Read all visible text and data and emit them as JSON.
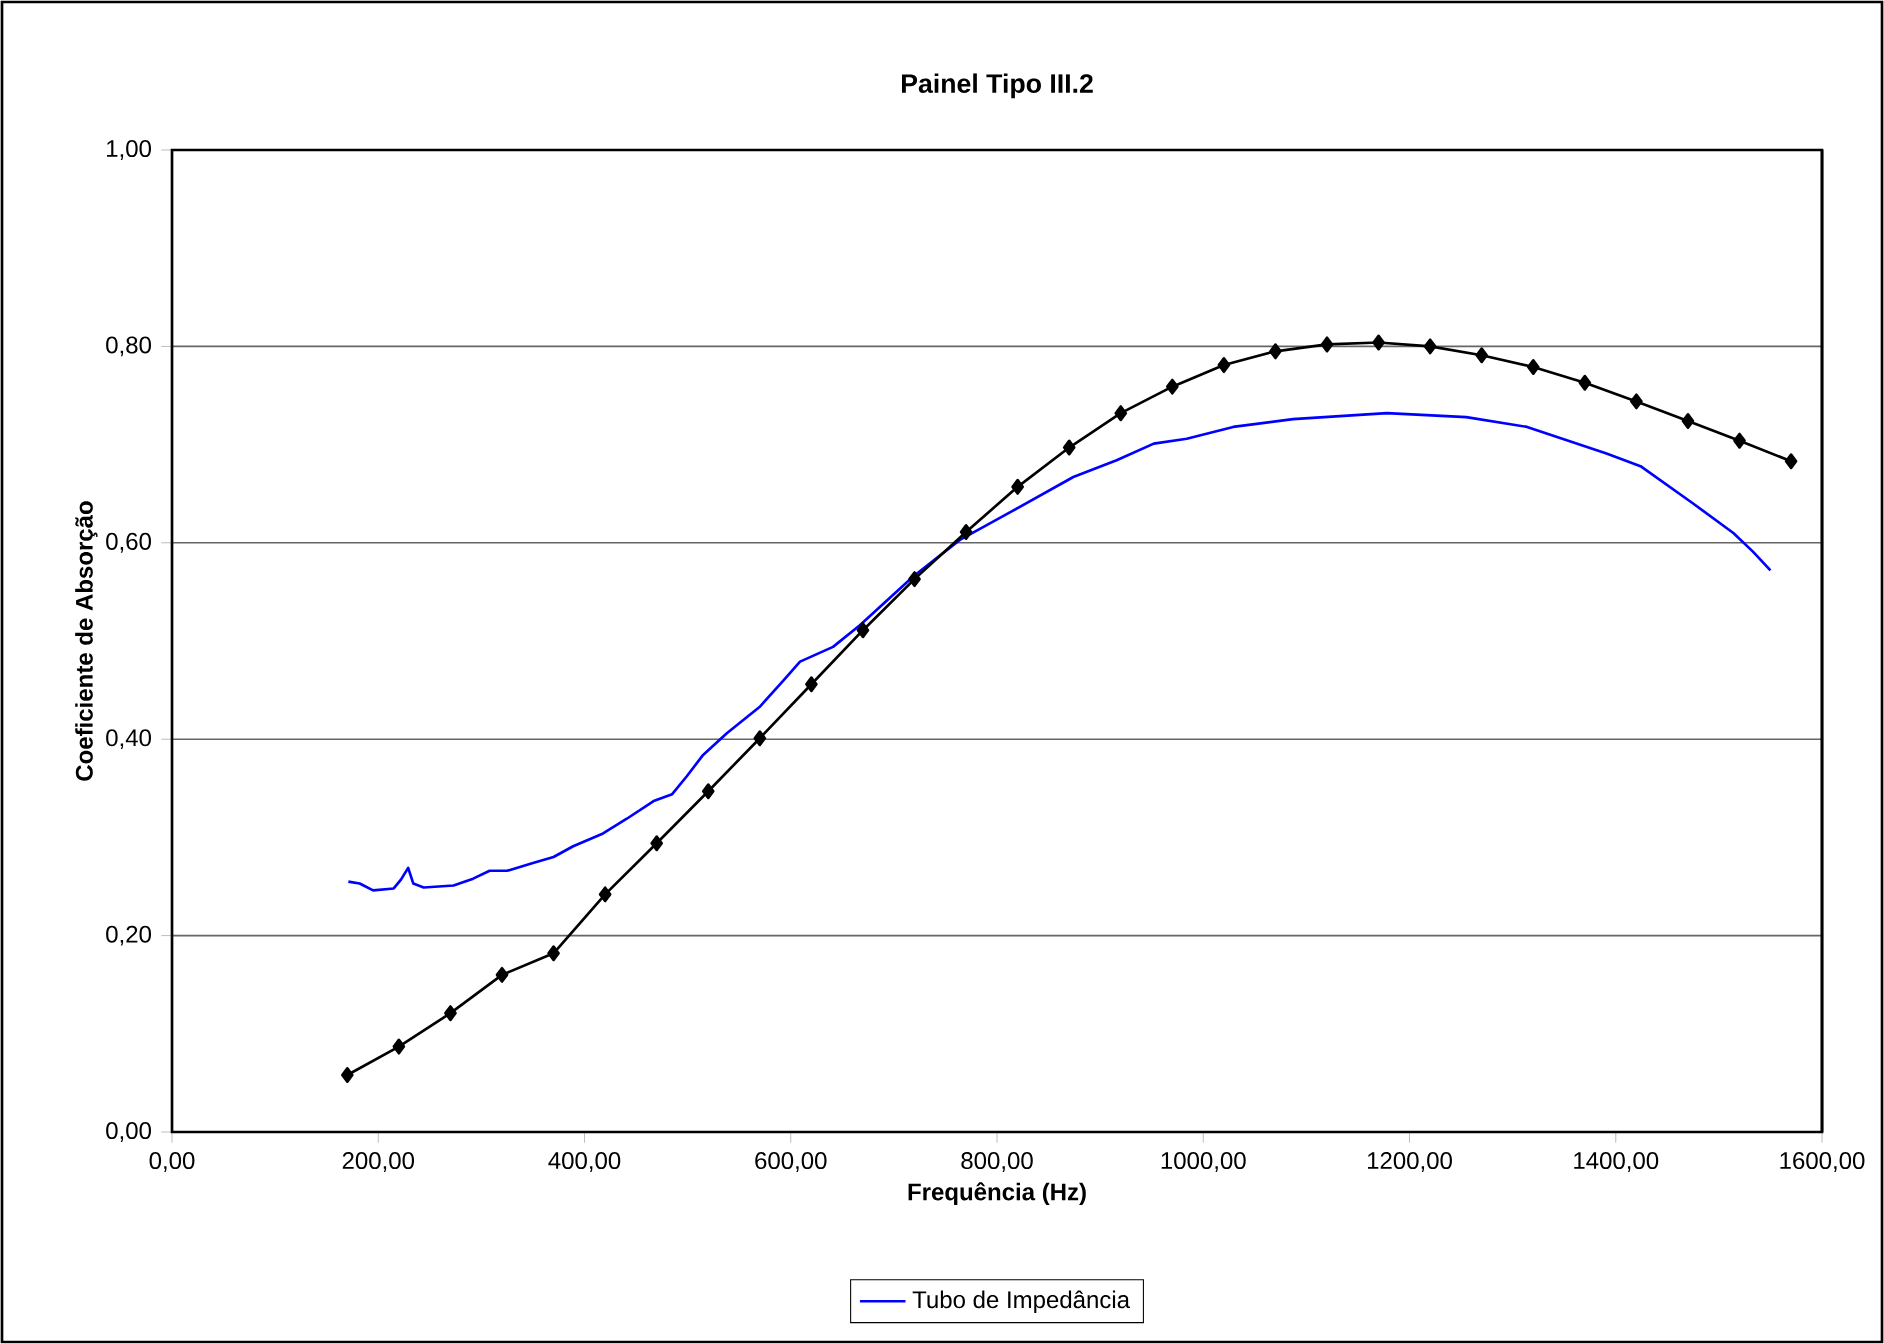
{
  "chart_data": {
    "type": "line",
    "title": "Painel Tipo III.2",
    "xlabel": "Frequência (Hz)",
    "ylabel": "Coeficiente de Absorção",
    "xlim": [
      0,
      1600
    ],
    "ylim": [
      0,
      1
    ],
    "xticks": [
      {
        "value": 0,
        "label": "0,00"
      },
      {
        "value": 200,
        "label": "200,00"
      },
      {
        "value": 400,
        "label": "400,00"
      },
      {
        "value": 600,
        "label": "600,00"
      },
      {
        "value": 800,
        "label": "800,00"
      },
      {
        "value": 1000,
        "label": "1000,00"
      },
      {
        "value": 1200,
        "label": "1200,00"
      },
      {
        "value": 1400,
        "label": "1400,00"
      },
      {
        "value": 1600,
        "label": "1600,00"
      }
    ],
    "yticks": [
      {
        "value": 0,
        "label": "0,00"
      },
      {
        "value": 0.2,
        "label": "0,20"
      },
      {
        "value": 0.4,
        "label": "0,40"
      },
      {
        "value": 0.6,
        "label": "0,60"
      },
      {
        "value": 0.8,
        "label": "0,80"
      },
      {
        "value": 1,
        "label": "1,00"
      }
    ],
    "grid": "y",
    "legend": "bottom",
    "series": [
      {
        "name": "Tubo de Impedância",
        "color": "#0000ff",
        "marker": "none",
        "x": [
          171,
          182,
          195,
          215,
          222,
          229,
          234,
          244,
          273,
          292,
          308,
          325,
          350,
          370,
          389,
          418,
          441,
          467,
          485,
          499,
          515,
          538,
          570,
          593,
          609,
          641,
          667,
          719,
          764,
          816,
          874,
          916,
          952,
          984,
          1029,
          1087,
          1178,
          1255,
          1314,
          1391,
          1424,
          1475,
          1514,
          1533,
          1550
        ],
        "values": [
          0.255,
          0.253,
          0.246,
          0.248,
          0.257,
          0.269,
          0.253,
          0.249,
          0.251,
          0.258,
          0.266,
          0.266,
          0.274,
          0.28,
          0.291,
          0.304,
          0.319,
          0.337,
          0.344,
          0.362,
          0.384,
          0.406,
          0.433,
          0.46,
          0.479,
          0.494,
          0.516,
          0.566,
          0.603,
          0.633,
          0.667,
          0.684,
          0.701,
          0.706,
          0.718,
          0.726,
          0.732,
          0.728,
          0.718,
          0.691,
          0.678,
          0.64,
          0.61,
          0.591,
          0.572
        ]
      },
      {
        "color": "#000000",
        "marker": "diamond",
        "x": [
          170,
          220,
          270,
          320,
          370,
          420,
          470,
          520,
          570,
          620,
          670,
          720,
          770,
          820,
          870,
          920,
          970,
          1020,
          1070,
          1120,
          1170,
          1220,
          1270,
          1320,
          1370,
          1420,
          1470,
          1520,
          1570
        ],
        "values": [
          0.058,
          0.087,
          0.121,
          0.16,
          0.182,
          0.242,
          0.294,
          0.347,
          0.401,
          0.456,
          0.511,
          0.563,
          0.611,
          0.657,
          0.697,
          0.732,
          0.759,
          0.781,
          0.795,
          0.802,
          0.804,
          0.8,
          0.791,
          0.779,
          0.763,
          0.744,
          0.724,
          0.704,
          0.683
        ]
      }
    ]
  }
}
